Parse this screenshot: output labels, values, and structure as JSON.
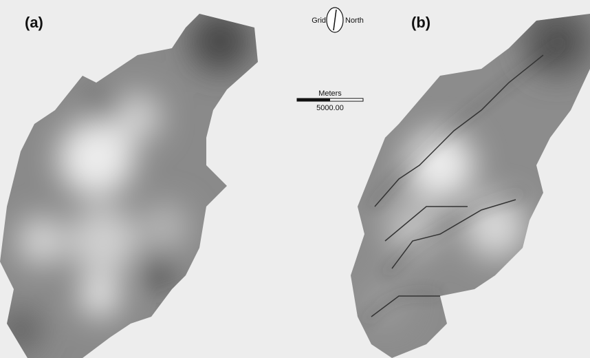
{
  "panels": [
    {
      "label": "(a)"
    },
    {
      "label": "(b)"
    }
  ],
  "north_arrow": {
    "left": "Grid",
    "right": "North"
  },
  "scale_bar": {
    "unit": "Meters",
    "length": "5000.00"
  }
}
